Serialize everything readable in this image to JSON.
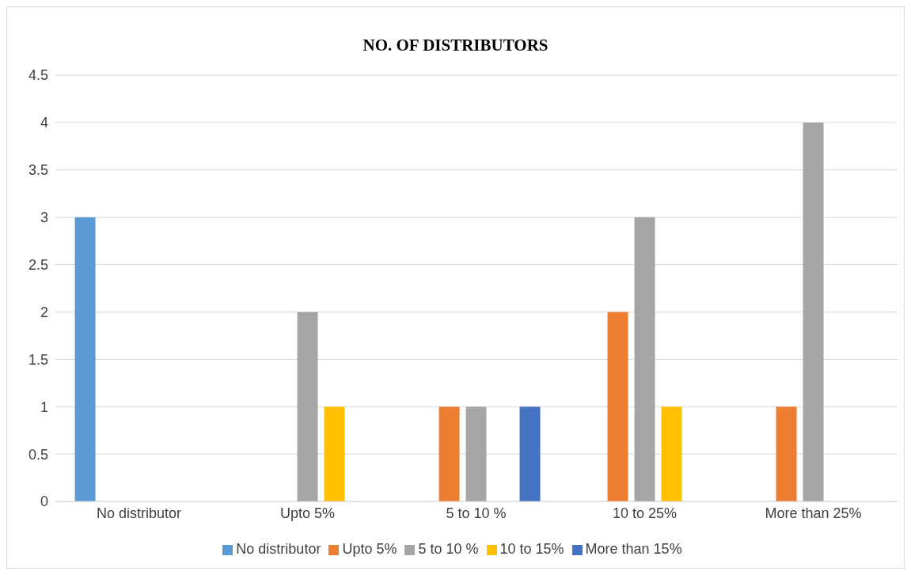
{
  "chart_data": {
    "type": "bar",
    "title": "NO. OF DISTRIBUTORS",
    "categories": [
      "No distributor",
      "Upto 5%",
      "5 to 10 %",
      "10 to 25%",
      "More than 25%"
    ],
    "series": [
      {
        "name": "No distributor",
        "color": "#5b9bd5",
        "values": [
          3,
          0,
          0,
          0,
          0
        ]
      },
      {
        "name": "Upto 5%",
        "color": "#ed7d31",
        "values": [
          0,
          0,
          1,
          2,
          1
        ]
      },
      {
        "name": "5 to 10 %",
        "color": "#a5a5a5",
        "values": [
          0,
          2,
          1,
          3,
          4
        ]
      },
      {
        "name": "10 to 15%",
        "color": "#ffc000",
        "values": [
          0,
          1,
          0,
          1,
          0
        ]
      },
      {
        "name": "More than 15%",
        "color": "#4472c4",
        "values": [
          0,
          0,
          1,
          0,
          0
        ]
      }
    ],
    "ylim": [
      0,
      4.5
    ],
    "yticks": [
      0,
      0.5,
      1,
      1.5,
      2,
      2.5,
      3,
      3.5,
      4,
      4.5
    ],
    "grid": "y",
    "legend": "bottom"
  }
}
